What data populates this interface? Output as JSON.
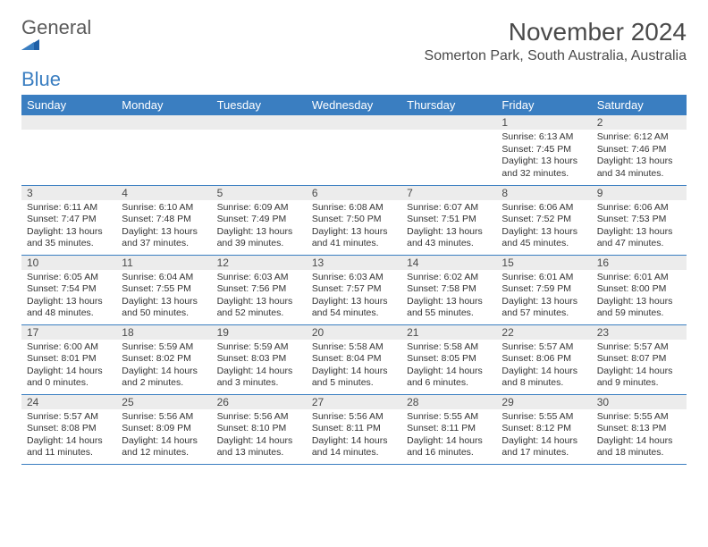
{
  "logo": {
    "word1": "General",
    "word2": "Blue"
  },
  "header": {
    "title": "November 2024",
    "location": "Somerton Park, South Australia, Australia"
  },
  "colors": {
    "header_bg": "#3a7ec1",
    "header_text": "#ffffff",
    "daynum_bg": "#ececec",
    "row_border": "#3a7ec1",
    "page_bg": "#ffffff",
    "text": "#333333",
    "title_text": "#4a4a4a",
    "logo_gray": "#5a5a5a",
    "logo_blue": "#3a7ec1"
  },
  "typography": {
    "title_fontsize": 28,
    "location_fontsize": 16,
    "weekday_fontsize": 13,
    "daynum_fontsize": 12,
    "cell_fontsize": 10.5
  },
  "weekdays": [
    "Sunday",
    "Monday",
    "Tuesday",
    "Wednesday",
    "Thursday",
    "Friday",
    "Saturday"
  ],
  "labels": {
    "sunrise": "Sunrise:",
    "sunset": "Sunset:",
    "daylight": "Daylight:"
  },
  "weeks": [
    [
      null,
      null,
      null,
      null,
      null,
      {
        "n": "1",
        "sunrise": "6:13 AM",
        "sunset": "7:45 PM",
        "daylight": "13 hours and 32 minutes."
      },
      {
        "n": "2",
        "sunrise": "6:12 AM",
        "sunset": "7:46 PM",
        "daylight": "13 hours and 34 minutes."
      }
    ],
    [
      {
        "n": "3",
        "sunrise": "6:11 AM",
        "sunset": "7:47 PM",
        "daylight": "13 hours and 35 minutes."
      },
      {
        "n": "4",
        "sunrise": "6:10 AM",
        "sunset": "7:48 PM",
        "daylight": "13 hours and 37 minutes."
      },
      {
        "n": "5",
        "sunrise": "6:09 AM",
        "sunset": "7:49 PM",
        "daylight": "13 hours and 39 minutes."
      },
      {
        "n": "6",
        "sunrise": "6:08 AM",
        "sunset": "7:50 PM",
        "daylight": "13 hours and 41 minutes."
      },
      {
        "n": "7",
        "sunrise": "6:07 AM",
        "sunset": "7:51 PM",
        "daylight": "13 hours and 43 minutes."
      },
      {
        "n": "8",
        "sunrise": "6:06 AM",
        "sunset": "7:52 PM",
        "daylight": "13 hours and 45 minutes."
      },
      {
        "n": "9",
        "sunrise": "6:06 AM",
        "sunset": "7:53 PM",
        "daylight": "13 hours and 47 minutes."
      }
    ],
    [
      {
        "n": "10",
        "sunrise": "6:05 AM",
        "sunset": "7:54 PM",
        "daylight": "13 hours and 48 minutes."
      },
      {
        "n": "11",
        "sunrise": "6:04 AM",
        "sunset": "7:55 PM",
        "daylight": "13 hours and 50 minutes."
      },
      {
        "n": "12",
        "sunrise": "6:03 AM",
        "sunset": "7:56 PM",
        "daylight": "13 hours and 52 minutes."
      },
      {
        "n": "13",
        "sunrise": "6:03 AM",
        "sunset": "7:57 PM",
        "daylight": "13 hours and 54 minutes."
      },
      {
        "n": "14",
        "sunrise": "6:02 AM",
        "sunset": "7:58 PM",
        "daylight": "13 hours and 55 minutes."
      },
      {
        "n": "15",
        "sunrise": "6:01 AM",
        "sunset": "7:59 PM",
        "daylight": "13 hours and 57 minutes."
      },
      {
        "n": "16",
        "sunrise": "6:01 AM",
        "sunset": "8:00 PM",
        "daylight": "13 hours and 59 minutes."
      }
    ],
    [
      {
        "n": "17",
        "sunrise": "6:00 AM",
        "sunset": "8:01 PM",
        "daylight": "14 hours and 0 minutes."
      },
      {
        "n": "18",
        "sunrise": "5:59 AM",
        "sunset": "8:02 PM",
        "daylight": "14 hours and 2 minutes."
      },
      {
        "n": "19",
        "sunrise": "5:59 AM",
        "sunset": "8:03 PM",
        "daylight": "14 hours and 3 minutes."
      },
      {
        "n": "20",
        "sunrise": "5:58 AM",
        "sunset": "8:04 PM",
        "daylight": "14 hours and 5 minutes."
      },
      {
        "n": "21",
        "sunrise": "5:58 AM",
        "sunset": "8:05 PM",
        "daylight": "14 hours and 6 minutes."
      },
      {
        "n": "22",
        "sunrise": "5:57 AM",
        "sunset": "8:06 PM",
        "daylight": "14 hours and 8 minutes."
      },
      {
        "n": "23",
        "sunrise": "5:57 AM",
        "sunset": "8:07 PM",
        "daylight": "14 hours and 9 minutes."
      }
    ],
    [
      {
        "n": "24",
        "sunrise": "5:57 AM",
        "sunset": "8:08 PM",
        "daylight": "14 hours and 11 minutes."
      },
      {
        "n": "25",
        "sunrise": "5:56 AM",
        "sunset": "8:09 PM",
        "daylight": "14 hours and 12 minutes."
      },
      {
        "n": "26",
        "sunrise": "5:56 AM",
        "sunset": "8:10 PM",
        "daylight": "14 hours and 13 minutes."
      },
      {
        "n": "27",
        "sunrise": "5:56 AM",
        "sunset": "8:11 PM",
        "daylight": "14 hours and 14 minutes."
      },
      {
        "n": "28",
        "sunrise": "5:55 AM",
        "sunset": "8:11 PM",
        "daylight": "14 hours and 16 minutes."
      },
      {
        "n": "29",
        "sunrise": "5:55 AM",
        "sunset": "8:12 PM",
        "daylight": "14 hours and 17 minutes."
      },
      {
        "n": "30",
        "sunrise": "5:55 AM",
        "sunset": "8:13 PM",
        "daylight": "14 hours and 18 minutes."
      }
    ]
  ]
}
